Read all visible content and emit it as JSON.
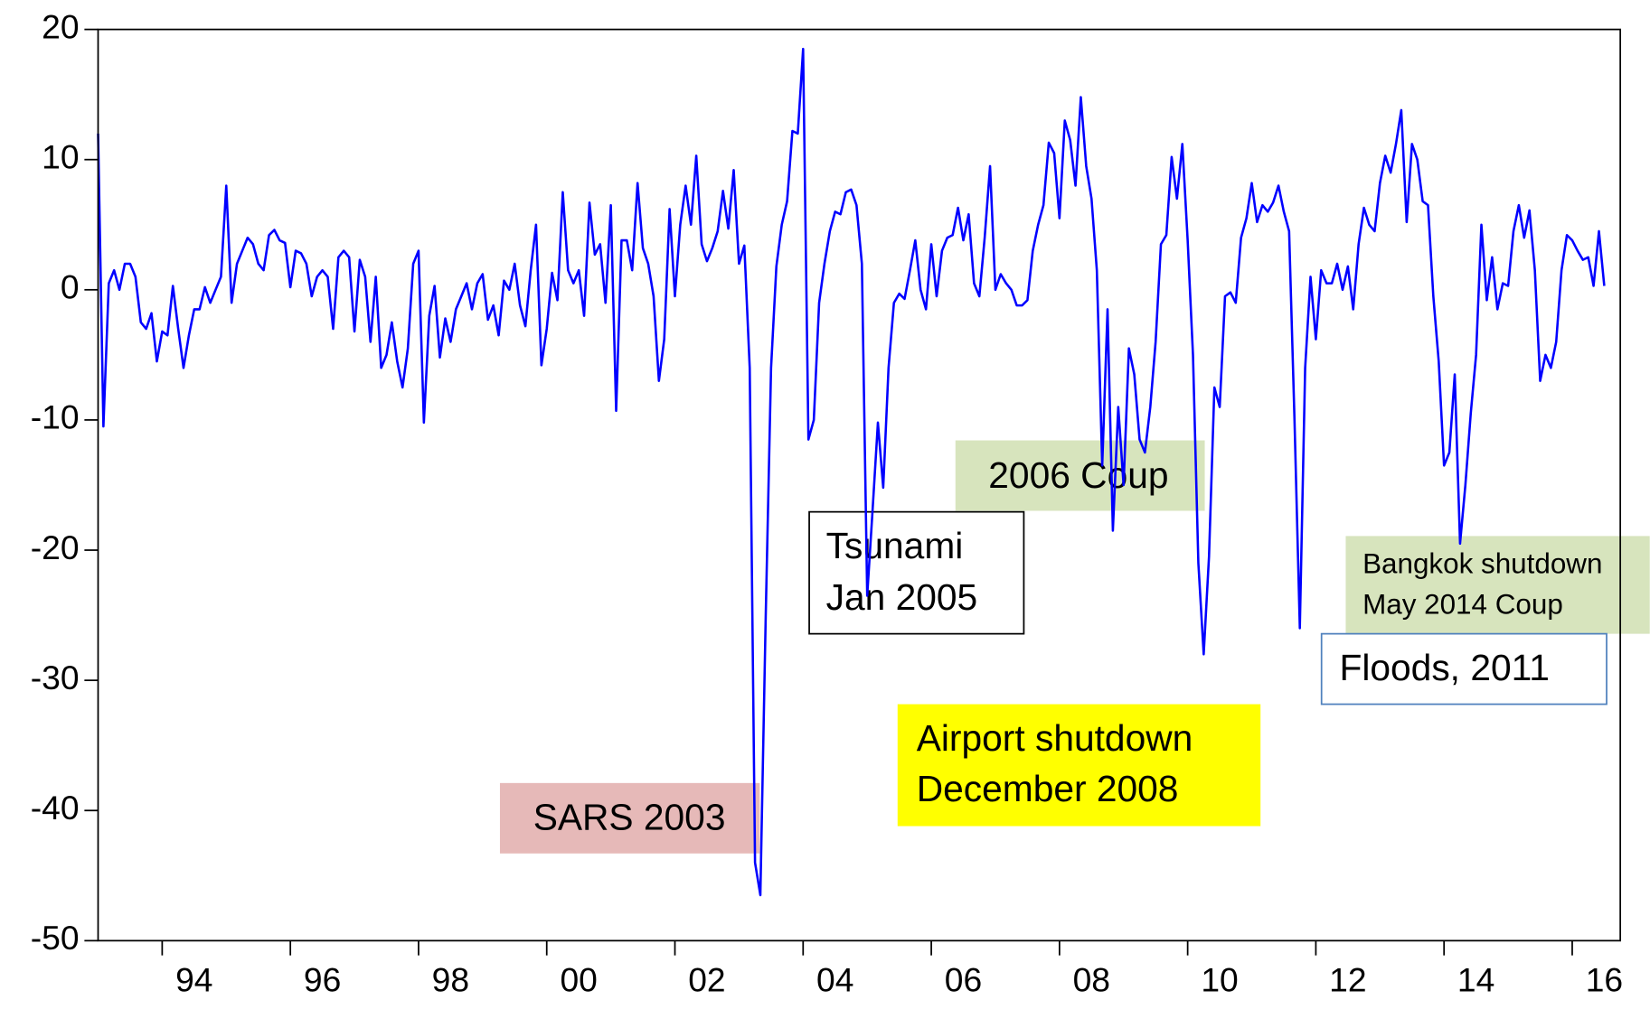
{
  "chart_data": {
    "type": "line",
    "color": "#0000ff",
    "xlim": [
      1993,
      2016.75
    ],
    "ylim": [
      -50,
      20
    ],
    "xticks": [
      {
        "value": 1994,
        "label": "94"
      },
      {
        "value": 1996,
        "label": "96"
      },
      {
        "value": 1998,
        "label": "98"
      },
      {
        "value": 2000,
        "label": "00"
      },
      {
        "value": 2002,
        "label": "02"
      },
      {
        "value": 2004,
        "label": "04"
      },
      {
        "value": 2006,
        "label": "06"
      },
      {
        "value": 2008,
        "label": "08"
      },
      {
        "value": 2010,
        "label": "10"
      },
      {
        "value": 2012,
        "label": "12"
      },
      {
        "value": 2014,
        "label": "14"
      },
      {
        "value": 2016,
        "label": "16"
      }
    ],
    "yticks": [
      -50,
      -40,
      -30,
      -20,
      -10,
      0,
      10,
      20
    ],
    "annotations": [
      {
        "lines": [
          "SARS 2003"
        ]
      },
      {
        "lines": [
          "Tsunami",
          "Jan 2005"
        ]
      },
      {
        "lines": [
          "2006 Coup"
        ]
      },
      {
        "lines": [
          "Airport shutdown",
          "December 2008"
        ]
      },
      {
        "lines": [
          "Bangkok shutdown",
          "May 2014  Coup"
        ]
      },
      {
        "lines": [
          "Floods, 2011"
        ]
      }
    ],
    "x": [
      1993,
      1993.083,
      1993.167,
      1993.25,
      1993.333,
      1993.417,
      1993.5,
      1993.583,
      1993.667,
      1993.75,
      1993.833,
      1993.917,
      1994,
      1994.083,
      1994.167,
      1994.25,
      1994.333,
      1994.417,
      1994.5,
      1994.583,
      1994.667,
      1994.75,
      1994.833,
      1994.917,
      1995,
      1995.083,
      1995.167,
      1995.25,
      1995.333,
      1995.417,
      1995.5,
      1995.583,
      1995.667,
      1995.75,
      1995.833,
      1995.917,
      1996,
      1996.083,
      1996.167,
      1996.25,
      1996.333,
      1996.417,
      1996.5,
      1996.583,
      1996.667,
      1996.75,
      1996.833,
      1996.917,
      1997,
      1997.083,
      1997.167,
      1997.25,
      1997.333,
      1997.417,
      1997.5,
      1997.583,
      1997.667,
      1997.75,
      1997.833,
      1997.917,
      1998,
      1998.083,
      1998.167,
      1998.25,
      1998.333,
      1998.417,
      1998.5,
      1998.583,
      1998.667,
      1998.75,
      1998.833,
      1998.917,
      1999,
      1999.083,
      1999.167,
      1999.25,
      1999.333,
      1999.417,
      1999.5,
      1999.583,
      1999.667,
      1999.75,
      1999.833,
      1999.917,
      2000,
      2000.083,
      2000.167,
      2000.25,
      2000.333,
      2000.417,
      2000.5,
      2000.583,
      2000.667,
      2000.75,
      2000.833,
      2000.917,
      2001,
      2001.083,
      2001.167,
      2001.25,
      2001.333,
      2001.417,
      2001.5,
      2001.583,
      2001.667,
      2001.75,
      2001.833,
      2001.917,
      2002,
      2002.083,
      2002.167,
      2002.25,
      2002.333,
      2002.417,
      2002.5,
      2002.583,
      2002.667,
      2002.75,
      2002.833,
      2002.917,
      2003,
      2003.083,
      2003.167,
      2003.25,
      2003.333,
      2003.417,
      2003.5,
      2003.583,
      2003.667,
      2003.75,
      2003.833,
      2003.917,
      2004,
      2004.083,
      2004.167,
      2004.25,
      2004.333,
      2004.417,
      2004.5,
      2004.583,
      2004.667,
      2004.75,
      2004.833,
      2004.917,
      2005,
      2005.083,
      2005.167,
      2005.25,
      2005.333,
      2005.417,
      2005.5,
      2005.583,
      2005.667,
      2005.75,
      2005.833,
      2005.917,
      2006,
      2006.083,
      2006.167,
      2006.25,
      2006.333,
      2006.417,
      2006.5,
      2006.583,
      2006.667,
      2006.75,
      2006.833,
      2006.917,
      2007,
      2007.083,
      2007.167,
      2007.25,
      2007.333,
      2007.417,
      2007.5,
      2007.583,
      2007.667,
      2007.75,
      2007.833,
      2007.917,
      2008,
      2008.083,
      2008.167,
      2008.25,
      2008.333,
      2008.417,
      2008.5,
      2008.583,
      2008.667,
      2008.75,
      2008.833,
      2008.917,
      2009,
      2009.083,
      2009.167,
      2009.25,
      2009.333,
      2009.417,
      2009.5,
      2009.583,
      2009.667,
      2009.75,
      2009.833,
      2009.917,
      2010,
      2010.083,
      2010.167,
      2010.25,
      2010.333,
      2010.417,
      2010.5,
      2010.583,
      2010.667,
      2010.75,
      2010.833,
      2010.917,
      2011,
      2011.083,
      2011.167,
      2011.25,
      2011.333,
      2011.417,
      2011.5,
      2011.583,
      2011.667,
      2011.75,
      2011.833,
      2011.917,
      2012,
      2012.083,
      2012.167,
      2012.25,
      2012.333,
      2012.417,
      2012.5,
      2012.583,
      2012.667,
      2012.75,
      2012.833,
      2012.917,
      2013,
      2013.083,
      2013.167,
      2013.25,
      2013.333,
      2013.417,
      2013.5,
      2013.583,
      2013.667,
      2013.75,
      2013.833,
      2013.917,
      2014,
      2014.083,
      2014.167,
      2014.25,
      2014.333,
      2014.417,
      2014.5,
      2014.583,
      2014.667,
      2014.75,
      2014.833,
      2014.917,
      2015,
      2015.083,
      2015.167,
      2015.25,
      2015.333,
      2015.417,
      2015.5,
      2015.583,
      2015.667,
      2015.75,
      2015.833,
      2015.917,
      2016,
      2016.083,
      2016.167,
      2016.25,
      2016.333,
      2016.417,
      2016.5
    ],
    "values": [
      12,
      -10.5,
      0.5,
      1.5,
      0,
      2,
      2,
      1,
      -2.5,
      -3,
      -1.8,
      -5.5,
      -3.2,
      -3.5,
      0.3,
      -3,
      -6,
      -3.5,
      -1.5,
      -1.5,
      0.2,
      -1,
      0,
      1,
      8,
      -1,
      2,
      3,
      4,
      3.5,
      2,
      1.5,
      4.2,
      4.6,
      3.8,
      3.6,
      0.2,
      3,
      2.8,
      2,
      -0.5,
      1,
      1.5,
      1,
      -3,
      2.5,
      3,
      2.5,
      -3.2,
      2.3,
      1,
      -4,
      1,
      -6,
      -5,
      -2.5,
      -5.5,
      -7.5,
      -4.5,
      2,
      3,
      -10.2,
      -2,
      0.3,
      -5.2,
      -2.2,
      -4,
      -1.5,
      -0.5,
      0.5,
      -1.5,
      0.5,
      1.2,
      -2.3,
      -1.2,
      -3.5,
      0.7,
      0,
      2,
      -1.2,
      -2.8,
      1.5,
      5,
      -5.8,
      -3,
      1.3,
      -0.8,
      7.5,
      1.5,
      0.5,
      1.5,
      -2,
      6.7,
      2.7,
      3.5,
      -1,
      6.5,
      -9.3,
      3.8,
      3.8,
      1.5,
      8.2,
      3.2,
      2,
      -0.5,
      -7,
      -3.8,
      6.2,
      -0.5,
      5,
      8,
      5,
      10.3,
      3.5,
      2.2,
      3.2,
      4.5,
      7.6,
      4.7,
      9.2,
      2,
      3.4,
      -6,
      -44,
      -46.5,
      -25,
      -6,
      1.8,
      5,
      6.8,
      12.2,
      12,
      18.5,
      -11.5,
      -10,
      -1,
      2,
      4.5,
      6,
      5.8,
      7.5,
      7.7,
      6.5,
      2,
      -23.5,
      -17,
      -10.2,
      -15.2,
      -6,
      -1,
      -0.3,
      -0.7,
      1.5,
      3.8,
      0,
      -1.5,
      3.5,
      -0.5,
      3,
      4,
      4.2,
      6.3,
      3.8,
      5.8,
      0.5,
      -0.5,
      4,
      9.5,
      0,
      1.2,
      0.5,
      0,
      -1.2,
      -1.2,
      -0.8,
      3,
      5,
      6.5,
      11.3,
      10.5,
      5.5,
      13,
      11.5,
      8,
      14.8,
      9.5,
      7,
      1.5,
      -13.5,
      -1.5,
      -18.5,
      -9,
      -15,
      -4.5,
      -6.5,
      -11.5,
      -12.5,
      -9,
      -4,
      3.5,
      4.2,
      10.2,
      7,
      11.2,
      3.8,
      -5,
      -21,
      -28,
      -20.5,
      -7.5,
      -9,
      -0.5,
      -0.2,
      -1,
      4,
      5.5,
      8.2,
      5.2,
      6.5,
      6,
      6.7,
      8,
      6,
      4.5,
      -10,
      -26,
      -6,
      1,
      -3.8,
      1.5,
      0.5,
      0.5,
      2,
      0,
      1.8,
      -1.5,
      3.5,
      6.3,
      5,
      4.5,
      8.2,
      10.3,
      9,
      11.2,
      13.8,
      5.2,
      11.2,
      10,
      6.8,
      6.5,
      -0.5,
      -5.5,
      -13.5,
      -12.5,
      -6.5,
      -19.5,
      -15,
      -9.5,
      -5,
      5,
      -0.8,
      2.5,
      -1.5,
      0.5,
      0.3,
      4.5,
      6.5,
      4,
      6.1,
      1.5,
      -7,
      -5,
      -6,
      -4,
      1.5,
      4.2,
      3.8,
      3,
      2.3,
      2.5,
      0.3,
      4.5,
      0.3
    ]
  }
}
